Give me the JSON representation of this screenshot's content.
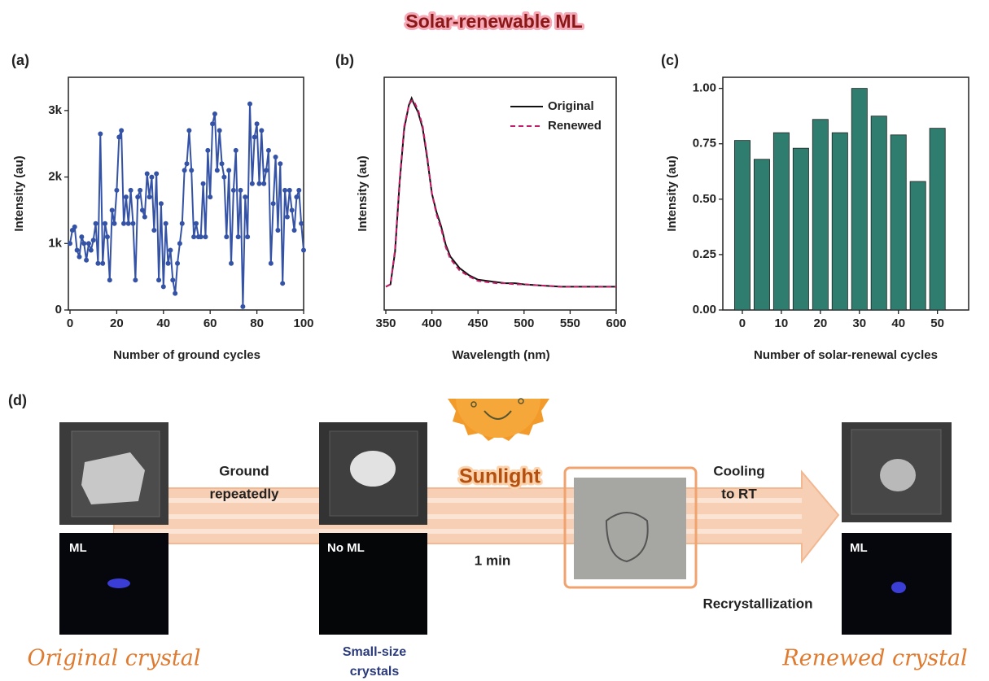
{
  "title": "Solar-renewable ML",
  "chart_data": [
    {
      "type": "line",
      "panel_label": "(a)",
      "x_label": "Number of ground cycles",
      "y_label": "Intensity (au)",
      "color": "#3553a6",
      "markers": true,
      "x": [
        0,
        1,
        2,
        3,
        4,
        5,
        6,
        7,
        8,
        9,
        10,
        11,
        12,
        13,
        14,
        15,
        16,
        17,
        18,
        19,
        20,
        21,
        22,
        23,
        24,
        25,
        26,
        27,
        28,
        29,
        30,
        31,
        32,
        33,
        34,
        35,
        36,
        37,
        38,
        39,
        40,
        41,
        42,
        43,
        44,
        45,
        46,
        47,
        48,
        49,
        50,
        51,
        52,
        53,
        54,
        55,
        56,
        57,
        58,
        59,
        60,
        61,
        62,
        63,
        64,
        65,
        66,
        67,
        68,
        69,
        70,
        71,
        72,
        73,
        74,
        75,
        76,
        77,
        78,
        79,
        80,
        81,
        82,
        83,
        84,
        85,
        86,
        87,
        88,
        89,
        90,
        91,
        92,
        93,
        94,
        95,
        96,
        97,
        98,
        99,
        100
      ],
      "values": [
        1000,
        1200,
        1250,
        900,
        800,
        1100,
        1000,
        750,
        1000,
        900,
        1050,
        1300,
        700,
        2650,
        700,
        1300,
        1100,
        450,
        1500,
        1300,
        1800,
        2600,
        2700,
        1300,
        1700,
        1300,
        1800,
        1300,
        450,
        1700,
        1800,
        1500,
        1400,
        2050,
        1700,
        2000,
        1200,
        2050,
        450,
        1600,
        350,
        1300,
        700,
        900,
        450,
        250,
        700,
        1000,
        1300,
        2100,
        2200,
        2700,
        2100,
        1100,
        1300,
        1100,
        1100,
        1900,
        1100,
        2400,
        1700,
        2800,
        2950,
        2100,
        2700,
        2200,
        2000,
        1100,
        2100,
        700,
        1800,
        2400,
        1100,
        1800,
        50,
        1700,
        1100,
        3100,
        1900,
        2600,
        2800,
        1900,
        2700,
        1900,
        2100,
        2400,
        700,
        1600,
        2300,
        1200,
        2200,
        400,
        1800,
        1400,
        1800,
        1500,
        1200,
        1700,
        1800,
        1300,
        900
      ],
      "xlim": [
        0,
        100
      ],
      "ylim": [
        0,
        3500
      ],
      "xticks": [
        0,
        20,
        40,
        60,
        80,
        100
      ],
      "yticks": [
        0,
        {
          "value": 1000,
          "label": "1k"
        },
        {
          "value": 2000,
          "label": "2k"
        },
        {
          "value": 3000,
          "label": "3k"
        }
      ]
    },
    {
      "type": "line",
      "panel_label": "(b)",
      "x_label": "Wavelength (nm)",
      "y_label": "Intensity (au)",
      "x": [
        350,
        355,
        360,
        365,
        370,
        375,
        378,
        380,
        385,
        390,
        395,
        400,
        405,
        410,
        415,
        420,
        430,
        440,
        450,
        460,
        470,
        480,
        490,
        500,
        520,
        540,
        560,
        580,
        600
      ],
      "series": [
        {
          "name": "Original",
          "color": "#111111",
          "linestyle": "solid",
          "values": [
            0.1,
            0.11,
            0.25,
            0.55,
            0.78,
            0.88,
            0.91,
            0.89,
            0.85,
            0.78,
            0.65,
            0.5,
            0.42,
            0.36,
            0.28,
            0.23,
            0.18,
            0.15,
            0.13,
            0.125,
            0.12,
            0.115,
            0.115,
            0.11,
            0.105,
            0.1,
            0.1,
            0.1,
            0.1
          ]
        },
        {
          "name": "Renewed",
          "color": "#c81e6a",
          "linestyle": "dashed",
          "values": [
            0.1,
            0.11,
            0.26,
            0.56,
            0.79,
            0.88,
            0.9,
            0.9,
            0.86,
            0.79,
            0.66,
            0.5,
            0.41,
            0.35,
            0.27,
            0.22,
            0.17,
            0.145,
            0.125,
            0.12,
            0.115,
            0.115,
            0.11,
            0.11,
            0.105,
            0.1,
            0.1,
            0.1,
            0.1
          ]
        }
      ],
      "xlim": [
        350,
        600
      ],
      "ylim": [
        0,
        1
      ],
      "xticks": [
        350,
        400,
        450,
        500,
        550,
        600
      ],
      "legend": "upper right"
    },
    {
      "type": "bar",
      "panel_label": "(c)",
      "x_label": "Number of solar-renewal cycles",
      "y_label": "Intensity (au)",
      "color": "#2f7d6e",
      "x": [
        0,
        5,
        10,
        15,
        20,
        25,
        30,
        35,
        40,
        45,
        50
      ],
      "values": [
        0.765,
        0.68,
        0.8,
        0.73,
        0.86,
        0.8,
        1.0,
        0.875,
        0.79,
        0.58,
        0.82
      ],
      "xlim": [
        -5,
        58
      ],
      "ylim": [
        0,
        1.05
      ],
      "xticks": [
        0,
        10,
        20,
        30,
        40,
        50
      ],
      "yticks": [
        {
          "value": 0,
          "label": "0.00"
        },
        {
          "value": 0.25,
          "label": "0.25"
        },
        {
          "value": 0.5,
          "label": "0.50"
        },
        {
          "value": 0.75,
          "label": "0.75"
        },
        {
          "value": 1,
          "label": "1.00"
        }
      ]
    }
  ],
  "diagram": {
    "panel_label": "(d)",
    "ground": [
      "Ground",
      "repeatedly"
    ],
    "sunlight": "Sunlight",
    "time": "1 min",
    "cooling": [
      "Cooling",
      "to RT"
    ],
    "recrystallization": "Recrystallization",
    "photo_labels": [
      "ML",
      "No ML",
      "ML"
    ],
    "captions": {
      "original": "Original crystal",
      "small": [
        "Small-size",
        "crystals"
      ],
      "renewed": "Renewed crystal"
    }
  }
}
